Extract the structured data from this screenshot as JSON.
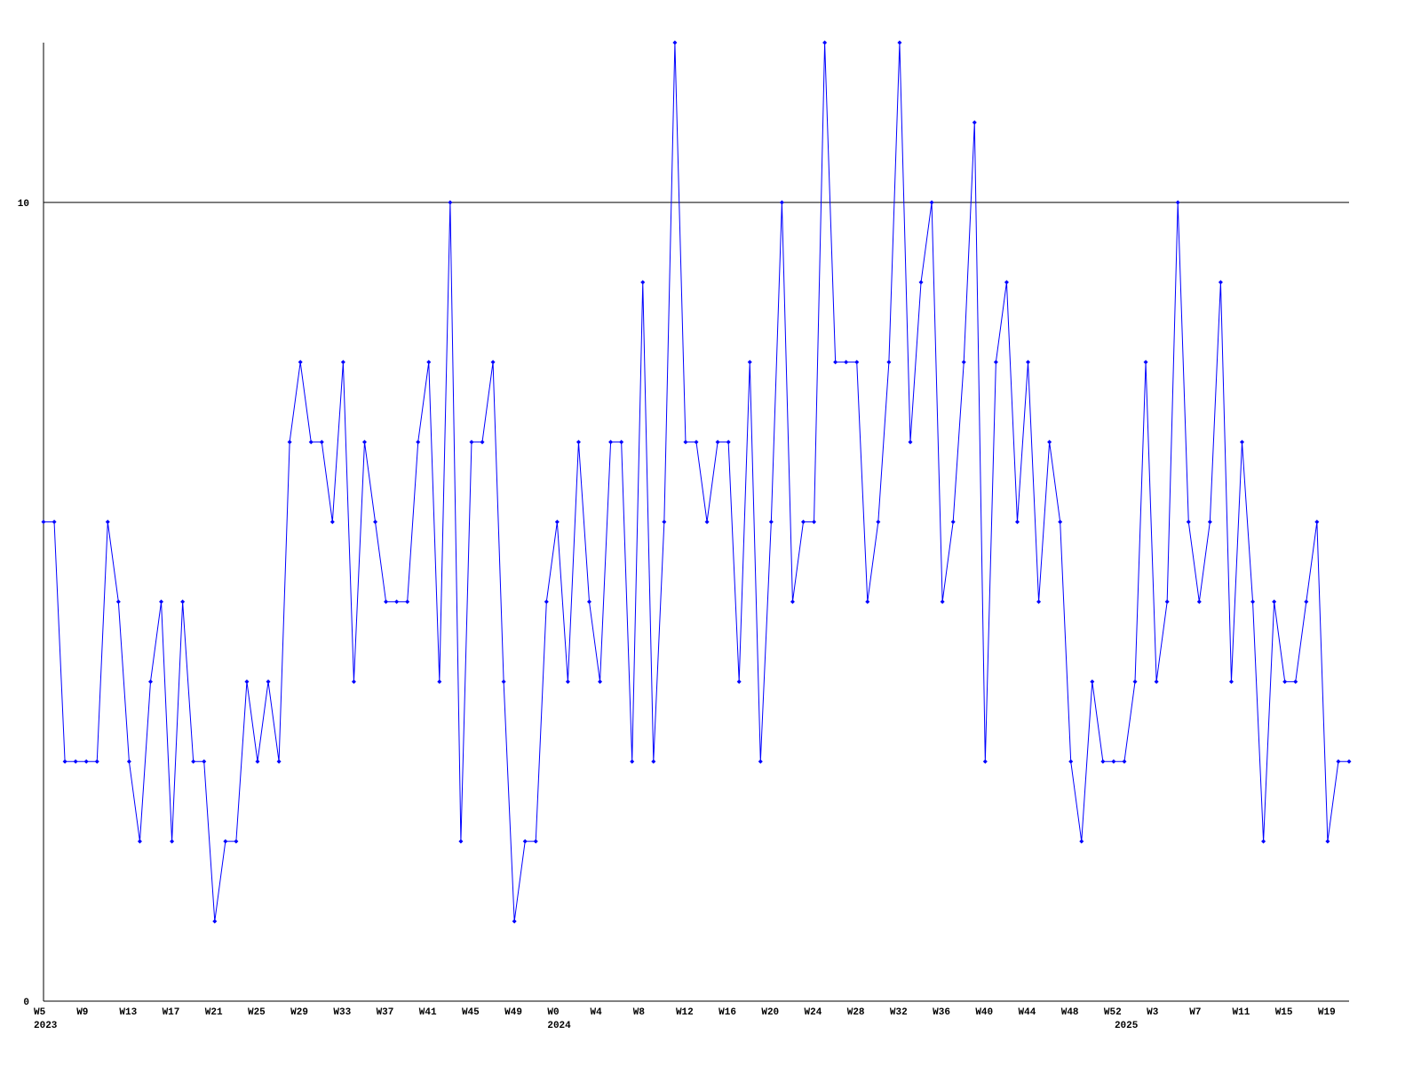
{
  "chart_data": {
    "type": "line",
    "categories": [
      "W5",
      null,
      null,
      null,
      "W9",
      null,
      null,
      null,
      "W13",
      null,
      null,
      null,
      "W17",
      null,
      null,
      null,
      "W21",
      null,
      null,
      null,
      "W25",
      null,
      null,
      null,
      "W29",
      null,
      null,
      null,
      "W33",
      null,
      null,
      null,
      "W37",
      null,
      null,
      null,
      "W41",
      null,
      null,
      null,
      "W45",
      null,
      null,
      null,
      "W49",
      null,
      null,
      null,
      "W0",
      null,
      null,
      null,
      "W4",
      null,
      null,
      null,
      "W8",
      null,
      null,
      null,
      "W12",
      null,
      null,
      null,
      "W16",
      null,
      null,
      null,
      "W20",
      null,
      null,
      null,
      "W24",
      null,
      null,
      null,
      "W28",
      null,
      null,
      null,
      "W32",
      null,
      null,
      null,
      "W36",
      null,
      null,
      null,
      "W40",
      null,
      null,
      null,
      "W44",
      null,
      null,
      null,
      "W48",
      null,
      null,
      null,
      "W52",
      null,
      null,
      null,
      "W3",
      null,
      null,
      null,
      "W7",
      null,
      null,
      null,
      "W11",
      null,
      null,
      null,
      "W15",
      null,
      null,
      null,
      "W19",
      null,
      null
    ],
    "year_labels": [
      "2023",
      null,
      null,
      null,
      null,
      null,
      null,
      null,
      null,
      null,
      null,
      null,
      null,
      null,
      null,
      null,
      null,
      null,
      null,
      null,
      null,
      null,
      null,
      null,
      null,
      null,
      null,
      null,
      null,
      null,
      null,
      null,
      null,
      null,
      null,
      null,
      null,
      null,
      null,
      null,
      null,
      null,
      null,
      null,
      null,
      null,
      null,
      null,
      "2024",
      null,
      null,
      null,
      null,
      null,
      null,
      null,
      null,
      null,
      null,
      null,
      null,
      null,
      null,
      null,
      null,
      null,
      null,
      null,
      null,
      null,
      null,
      null,
      null,
      null,
      null,
      null,
      null,
      null,
      null,
      null,
      null,
      null,
      null,
      null,
      null,
      null,
      null,
      null,
      null,
      null,
      null,
      null,
      null,
      null,
      null,
      null,
      null,
      null,
      null,
      null,
      null,
      "2025",
      null,
      null,
      null,
      null,
      null,
      null,
      null,
      null,
      null,
      null,
      null,
      null,
      null,
      null,
      null,
      null,
      null,
      null,
      null,
      null,
      null
    ],
    "series": [
      {
        "color": "#0000ff",
        "values": [
          6,
          6,
          3,
          3,
          3,
          3,
          6,
          5,
          3,
          2,
          4,
          5,
          2,
          5,
          3,
          3,
          1,
          2,
          2,
          4,
          3,
          4,
          3,
          7,
          8,
          7,
          7,
          6,
          8,
          4,
          7,
          6,
          5,
          5,
          5,
          7,
          8,
          4,
          10,
          2,
          7,
          7,
          8,
          4,
          1,
          2,
          2,
          5,
          6,
          4,
          7,
          5,
          4,
          7,
          7,
          3,
          9,
          3,
          6,
          12,
          7,
          7,
          6,
          7,
          7,
          4,
          8,
          3,
          6,
          10,
          5,
          6,
          6,
          12,
          8,
          8,
          8,
          5,
          6,
          8,
          12,
          7,
          9,
          10,
          5,
          6,
          8,
          11,
          3,
          8,
          9,
          6,
          8,
          5,
          7,
          6,
          3,
          2,
          4,
          3,
          3,
          3,
          4,
          8,
          4,
          5,
          10,
          6,
          5,
          6,
          9,
          4,
          7,
          5,
          2,
          5,
          4,
          4,
          5,
          6,
          2,
          3,
          3
        ]
      }
    ],
    "ylim": [
      0,
      12
    ],
    "yticks": [
      0,
      10
    ],
    "grid": true
  }
}
